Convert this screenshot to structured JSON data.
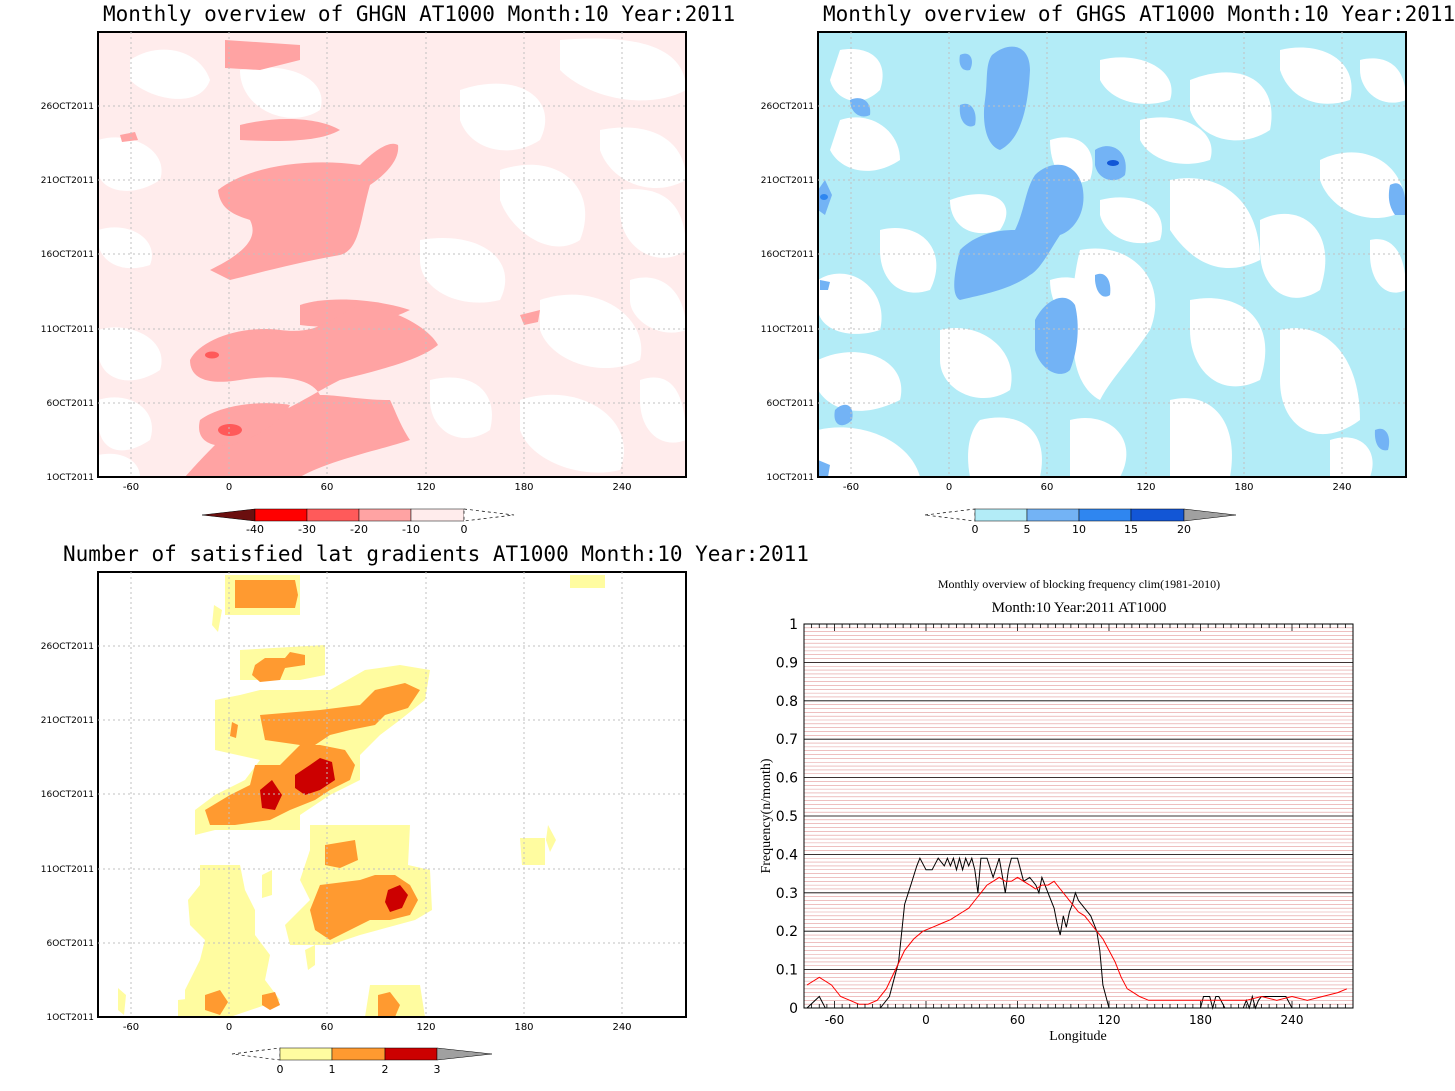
{
  "panels": {
    "ghgn": {
      "title": "Monthly overview of GHGN AT1000 Month:10 Year:2011",
      "date_labels": [
        "26OCT2011",
        "21OCT2011",
        "16OCT2011",
        "11OCT2011",
        "6OCT2011",
        "1OCT2011"
      ],
      "lon_labels": [
        "-60",
        "0",
        "60",
        "120",
        "180",
        "240"
      ],
      "colorbar_labels": [
        "-40",
        "-30",
        "-20",
        "-10",
        "0"
      ],
      "colorbar_colors": [
        "#6b0f0f",
        "#ff0000",
        "#ff5a5a",
        "#ffa3a3",
        "#ffecec"
      ]
    },
    "ghgs": {
      "title": "Monthly overview of GHGS AT1000 Month:10 Year:2011",
      "date_labels": [
        "26OCT2011",
        "21OCT2011",
        "16OCT2011",
        "11OCT2011",
        "6OCT2011",
        "1OCT2011"
      ],
      "lon_labels": [
        "-60",
        "0",
        "60",
        "120",
        "180",
        "240"
      ],
      "colorbar_labels": [
        "0",
        "5",
        "10",
        "15",
        "20"
      ],
      "colorbar_colors": [
        "#b3ecf7",
        "#73b3f5",
        "#2f86f0",
        "#1256d6",
        "#a0a0a0"
      ]
    },
    "gradients": {
      "title": "Number of satisfied lat gradients AT1000 Month:10 Year:2011",
      "date_labels": [
        "26OCT2011",
        "21OCT2011",
        "16OCT2011",
        "11OCT2011",
        "6OCT2011",
        "1OCT2011"
      ],
      "lon_labels": [
        "-60",
        "0",
        "60",
        "120",
        "180",
        "240"
      ],
      "colorbar_labels": [
        "0",
        "1",
        "2",
        "3"
      ],
      "colorbar_colors": [
        "#fffca0",
        "#ff9a30",
        "#cc0000",
        "#a0a0a0"
      ]
    },
    "blocking": {
      "title": "Monthly overview of blocking frequency clim(1981-2010)",
      "subtitle": "Month:10 Year:2011  AT1000",
      "xlabel": "Longitude",
      "ylabel": "Frequency(n/month)",
      "y_ticks": [
        "0",
        "0.1",
        "0.2",
        "0.3",
        "0.4",
        "0.5",
        "0.6",
        "0.7",
        "0.8",
        "0.9",
        "1"
      ],
      "x_ticks": [
        "-60",
        "0",
        "60",
        "120",
        "180",
        "240"
      ]
    }
  },
  "chart_data": [
    {
      "type": "heatmap",
      "title": "Monthly overview of GHGN AT1000 Month:10 Year:2011",
      "x_ticks": [
        -60,
        0,
        60,
        120,
        180,
        240
      ],
      "y_ticks": [
        "1OCT2011",
        "6OCT2011",
        "11OCT2011",
        "16OCT2011",
        "21OCT2011",
        "26OCT2011"
      ],
      "contour_levels": [
        -40,
        -30,
        -20,
        -10,
        0
      ]
    },
    {
      "type": "heatmap",
      "title": "Monthly overview of GHGS AT1000 Month:10 Year:2011",
      "x_ticks": [
        -60,
        0,
        60,
        120,
        180,
        240
      ],
      "y_ticks": [
        "1OCT2011",
        "6OCT2011",
        "11OCT2011",
        "16OCT2011",
        "21OCT2011",
        "26OCT2011"
      ],
      "contour_levels": [
        0,
        5,
        10,
        15,
        20
      ]
    },
    {
      "type": "heatmap",
      "title": "Number of satisfied lat gradients AT1000 Month:10 Year:2011",
      "x_ticks": [
        -60,
        0,
        60,
        120,
        180,
        240
      ],
      "y_ticks": [
        "1OCT2011",
        "6OCT2011",
        "11OCT2011",
        "16OCT2011",
        "21OCT2011",
        "26OCT2011"
      ],
      "contour_levels": [
        0,
        1,
        2,
        3
      ]
    },
    {
      "type": "line",
      "title": "Monthly overview of blocking frequency clim(1981-2010)",
      "subtitle": "Month:10 Year:2011  AT1000",
      "xlabel": "Longitude",
      "ylabel": "Frequency(n/month)",
      "xlim": [
        -80,
        280
      ],
      "ylim": [
        0,
        1
      ],
      "grid": true,
      "series": [
        {
          "color": "#000000",
          "x": [
            -78,
            -70,
            -66,
            -60,
            -40,
            -30,
            -24,
            -18,
            -14,
            -10,
            -6,
            -4,
            0,
            4,
            8,
            12,
            14,
            16,
            18,
            20,
            22,
            24,
            26,
            28,
            30,
            32,
            34,
            36,
            40,
            44,
            48,
            52,
            54,
            56,
            58,
            60,
            64,
            68,
            72,
            74,
            76,
            80,
            84,
            86,
            88,
            90,
            92,
            94,
            96,
            98,
            100,
            104,
            108,
            112,
            114,
            116,
            120,
            124,
            128,
            140,
            160,
            180,
            182,
            184,
            186,
            188,
            190,
            192,
            196,
            200,
            204,
            208,
            210,
            212,
            214,
            216,
            218,
            220,
            222,
            224,
            226,
            228,
            232,
            234,
            236,
            240,
            260,
            280
          ],
          "y": [
            0,
            0.03,
            0,
            0,
            0,
            0,
            0.03,
            0.12,
            0.27,
            0.32,
            0.37,
            0.39,
            0.36,
            0.36,
            0.39,
            0.37,
            0.39,
            0.37,
            0.39,
            0.36,
            0.39,
            0.36,
            0.39,
            0.37,
            0.39,
            0.36,
            0.3,
            0.39,
            0.39,
            0.34,
            0.39,
            0.3,
            0.36,
            0.39,
            0.39,
            0.39,
            0.33,
            0.34,
            0.32,
            0.3,
            0.34,
            0.3,
            0.26,
            0.22,
            0.19,
            0.24,
            0.21,
            0.25,
            0.27,
            0.3,
            0.28,
            0.26,
            0.24,
            0.2,
            0.15,
            0.06,
            0,
            0,
            0,
            0,
            0,
            0,
            0.03,
            0.03,
            0.03,
            0,
            0.03,
            0.03,
            0,
            0,
            0,
            0,
            0.02,
            0,
            0.03,
            0,
            0.02,
            0.03,
            0.03,
            0.03,
            0.03,
            0.03,
            0.03,
            0.03,
            0.03,
            0,
            0,
            0
          ]
        },
        {
          "color": "#ff0000",
          "x": [
            -78,
            -70,
            -62,
            -56,
            -50,
            -44,
            -38,
            -32,
            -26,
            -20,
            -14,
            -8,
            -2,
            4,
            10,
            16,
            20,
            24,
            28,
            32,
            36,
            40,
            44,
            48,
            52,
            56,
            60,
            64,
            68,
            72,
            76,
            80,
            84,
            88,
            92,
            96,
            100,
            104,
            108,
            112,
            116,
            120,
            124,
            128,
            132,
            136,
            140,
            146,
            152,
            160,
            170,
            180,
            190,
            200,
            210,
            220,
            230,
            240,
            250,
            260,
            270,
            276
          ],
          "y": [
            0.06,
            0.08,
            0.06,
            0.03,
            0.02,
            0.01,
            0.01,
            0.02,
            0.05,
            0.1,
            0.15,
            0.18,
            0.2,
            0.21,
            0.22,
            0.23,
            0.24,
            0.25,
            0.26,
            0.28,
            0.3,
            0.32,
            0.33,
            0.34,
            0.33,
            0.33,
            0.34,
            0.33,
            0.32,
            0.31,
            0.32,
            0.32,
            0.33,
            0.31,
            0.29,
            0.27,
            0.25,
            0.24,
            0.22,
            0.2,
            0.18,
            0.15,
            0.12,
            0.08,
            0.05,
            0.04,
            0.03,
            0.02,
            0.02,
            0.02,
            0.02,
            0.02,
            0.02,
            0.02,
            0.02,
            0.03,
            0.02,
            0.03,
            0.02,
            0.03,
            0.04,
            0.05
          ]
        }
      ]
    }
  ]
}
